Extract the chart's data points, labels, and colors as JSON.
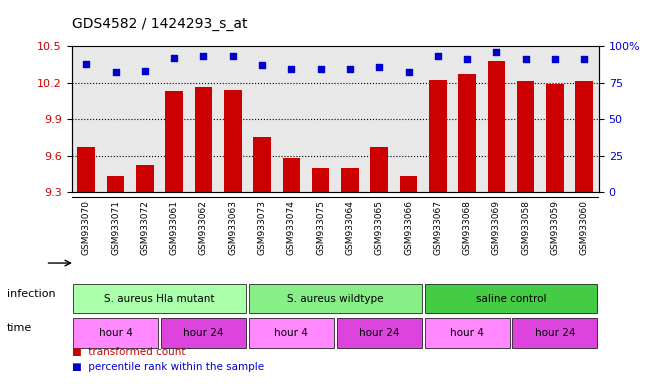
{
  "title": "GDS4582 / 1424293_s_at",
  "samples": [
    "GSM933070",
    "GSM933071",
    "GSM933072",
    "GSM933061",
    "GSM933062",
    "GSM933063",
    "GSM933073",
    "GSM933074",
    "GSM933075",
    "GSM933064",
    "GSM933065",
    "GSM933066",
    "GSM933067",
    "GSM933068",
    "GSM933069",
    "GSM933058",
    "GSM933059",
    "GSM933060"
  ],
  "bar_values": [
    9.67,
    9.43,
    9.52,
    10.13,
    10.16,
    10.14,
    9.75,
    9.58,
    9.5,
    9.5,
    9.67,
    9.43,
    10.22,
    10.27,
    10.38,
    10.21,
    10.19,
    10.21
  ],
  "percentile_values": [
    88,
    82,
    83,
    92,
    93,
    93,
    87,
    84,
    84,
    84,
    86,
    82,
    93,
    91,
    96,
    91,
    91,
    91
  ],
  "ylim_left": [
    9.3,
    10.5
  ],
  "ylim_right": [
    0,
    100
  ],
  "yticks_left": [
    9.3,
    9.6,
    9.9,
    10.2,
    10.5
  ],
  "yticks_right": [
    0,
    25,
    50,
    75,
    100
  ],
  "bar_color": "#cc0000",
  "dot_color": "#0000cc",
  "bg_color": "#ffffff",
  "plot_bg_color": "#e8e8e8",
  "infection_groups": [
    {
      "label": "S. aureus Hla mutant",
      "start": 0,
      "end": 6,
      "color": "#aaffaa"
    },
    {
      "label": "S. aureus wildtype",
      "start": 6,
      "end": 12,
      "color": "#88ee88"
    },
    {
      "label": "saline control",
      "start": 12,
      "end": 18,
      "color": "#44cc44"
    }
  ],
  "time_groups": [
    {
      "label": "hour 4",
      "start": 0,
      "end": 3,
      "color": "#ff88ff"
    },
    {
      "label": "hour 24",
      "start": 3,
      "end": 6,
      "color": "#dd44dd"
    },
    {
      "label": "hour 4",
      "start": 6,
      "end": 9,
      "color": "#ff88ff"
    },
    {
      "label": "hour 24",
      "start": 9,
      "end": 12,
      "color": "#dd44dd"
    },
    {
      "label": "hour 4",
      "start": 12,
      "end": 15,
      "color": "#ff88ff"
    },
    {
      "label": "hour 24",
      "start": 15,
      "end": 18,
      "color": "#dd44dd"
    }
  ],
  "legend_items": [
    {
      "label": "transformed count",
      "color": "#cc0000",
      "marker": "s"
    },
    {
      "label": "percentile rank within the sample",
      "color": "#0000cc",
      "marker": "s"
    }
  ]
}
